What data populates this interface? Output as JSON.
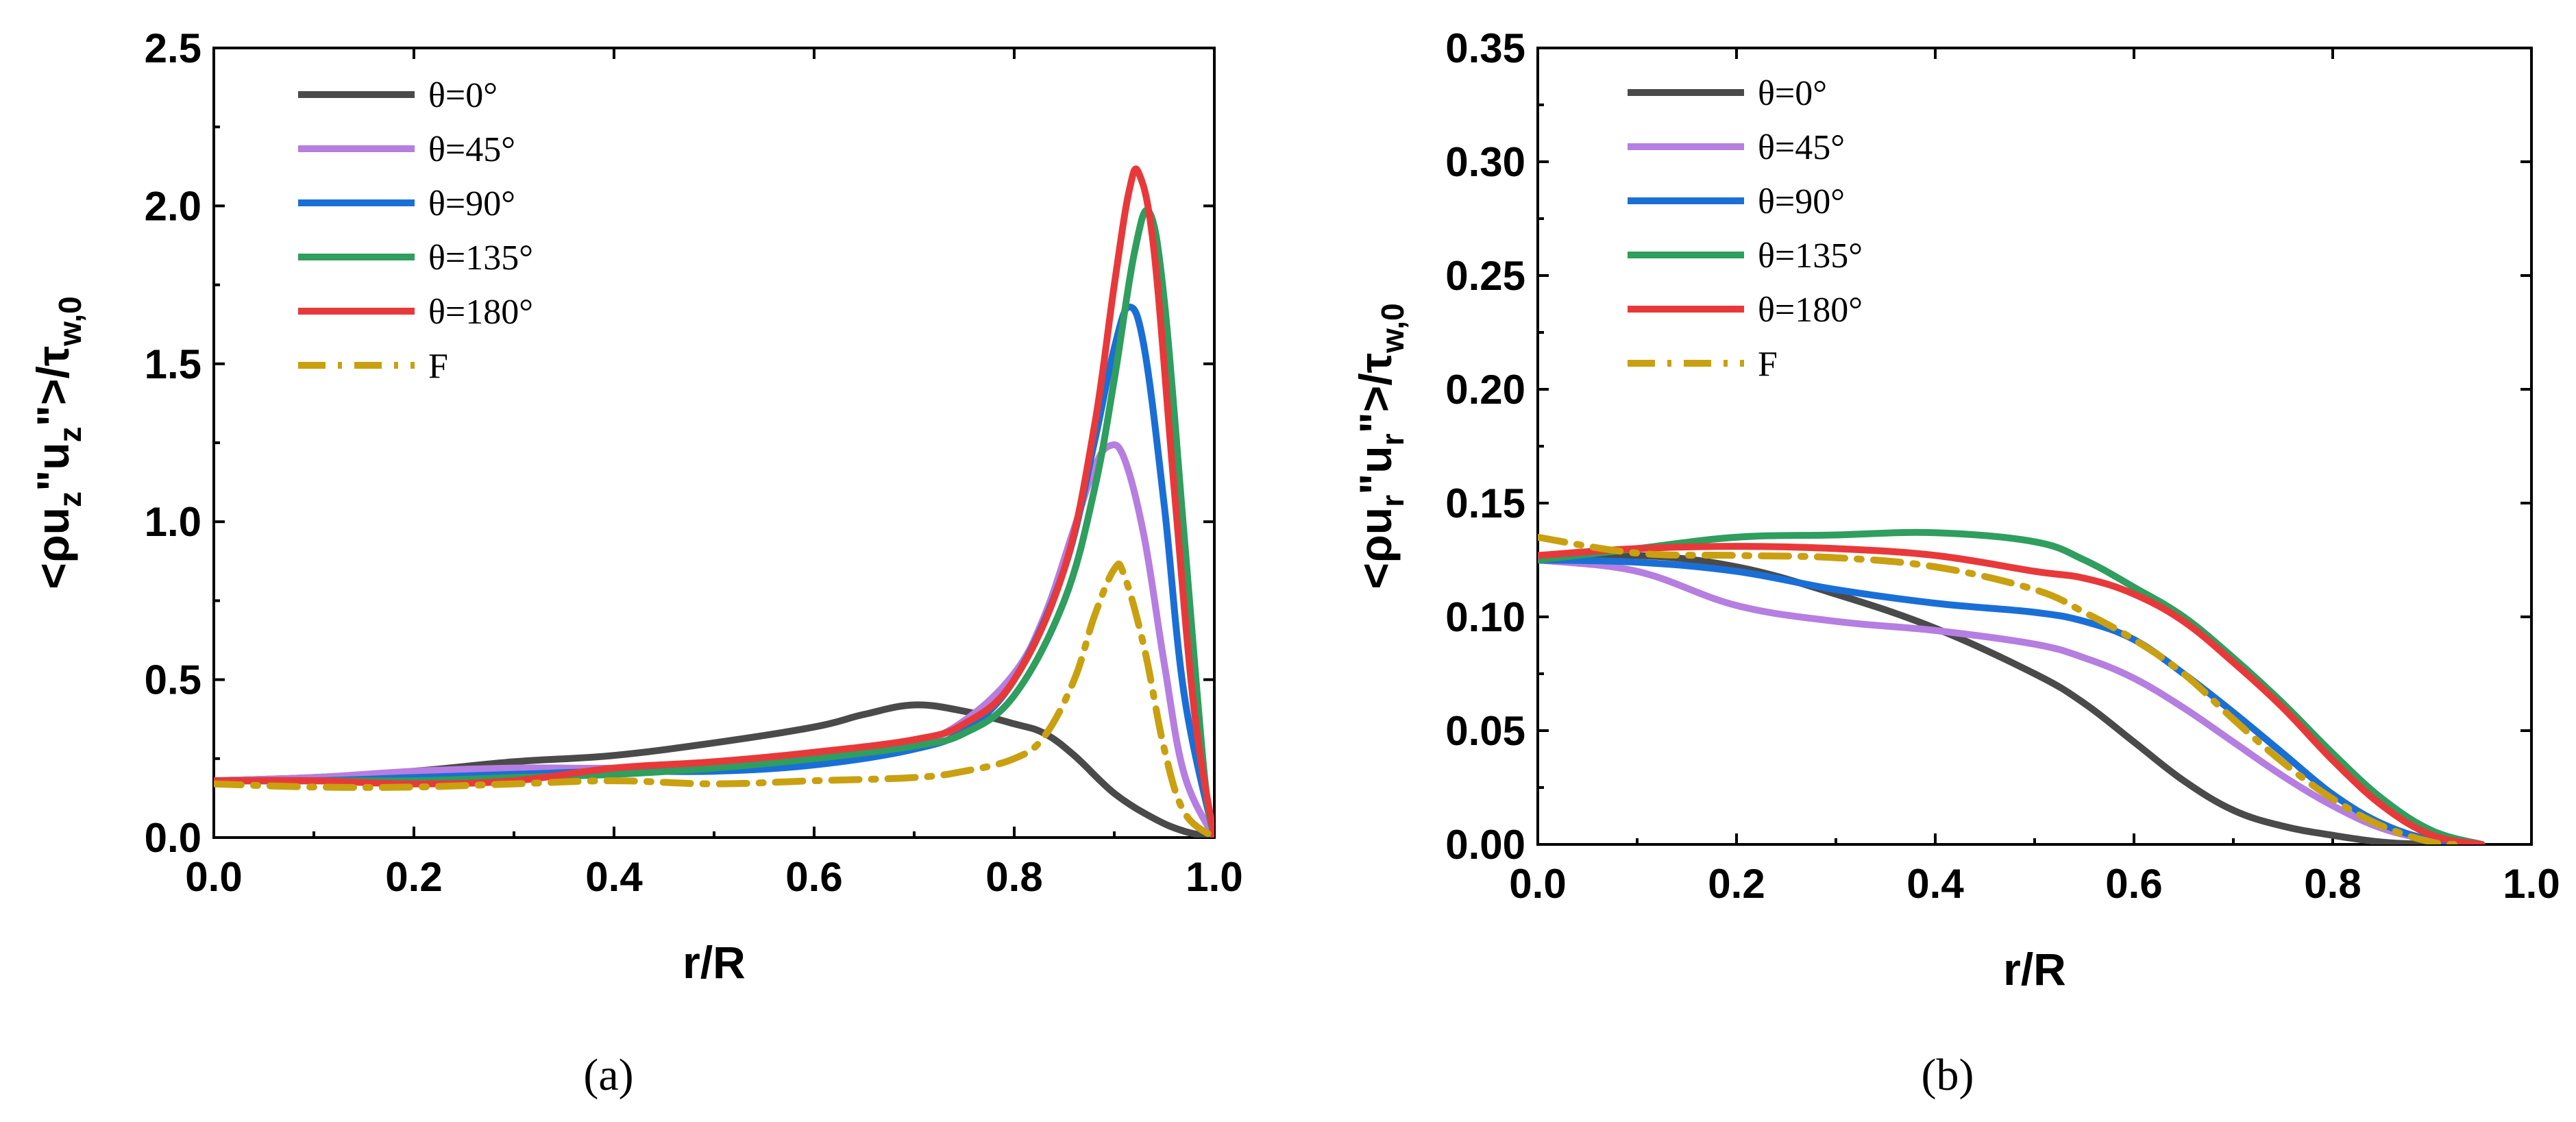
{
  "chart_data": [
    {
      "type": "line",
      "panel_label": "(a)",
      "xlabel": "r/R",
      "ylabel": {
        "prefix": "<ρu",
        "sub1": "z",
        "mid": "\"u",
        "sub2": "z",
        "mid2": "\">/τ",
        "sub3": "w,0"
      },
      "ylabel_text": "<ρu_z\"u_z\">/τ_w,0",
      "xlim": [
        0.0,
        1.0
      ],
      "ylim": [
        0.0,
        2.5
      ],
      "xticks": [
        "0.0",
        "0.2",
        "0.4",
        "0.6",
        "0.8",
        "1.0"
      ],
      "yticks": [
        "0.0",
        "0.5",
        "1.0",
        "1.5",
        "2.0",
        "2.5"
      ],
      "legend_position": "top-left",
      "series": [
        {
          "name": "θ=0°",
          "color": "#4a4a4a",
          "dash": "solid",
          "x": [
            0,
            0.1,
            0.2,
            0.3,
            0.4,
            0.5,
            0.6,
            0.65,
            0.7,
            0.75,
            0.8,
            0.83,
            0.86,
            0.9,
            0.94,
            0.97,
            1.0
          ],
          "y": [
            0.18,
            0.19,
            0.21,
            0.24,
            0.26,
            0.3,
            0.35,
            0.39,
            0.42,
            0.4,
            0.36,
            0.33,
            0.26,
            0.14,
            0.06,
            0.02,
            0.0
          ]
        },
        {
          "name": "θ=45°",
          "color": "#b57ee0",
          "dash": "solid",
          "x": [
            0,
            0.1,
            0.2,
            0.3,
            0.4,
            0.5,
            0.6,
            0.7,
            0.75,
            0.8,
            0.83,
            0.86,
            0.88,
            0.895,
            0.91,
            0.93,
            0.95,
            0.97,
            1.0
          ],
          "y": [
            0.18,
            0.19,
            0.21,
            0.22,
            0.22,
            0.23,
            0.25,
            0.3,
            0.37,
            0.52,
            0.7,
            0.98,
            1.17,
            1.24,
            1.2,
            0.95,
            0.55,
            0.2,
            0.0
          ]
        },
        {
          "name": "θ=90°",
          "color": "#1a6fd6",
          "dash": "solid",
          "x": [
            0,
            0.1,
            0.2,
            0.3,
            0.4,
            0.5,
            0.6,
            0.7,
            0.75,
            0.8,
            0.85,
            0.88,
            0.9,
            0.915,
            0.93,
            0.95,
            0.97,
            1.0
          ],
          "y": [
            0.18,
            0.18,
            0.19,
            0.2,
            0.21,
            0.21,
            0.23,
            0.28,
            0.34,
            0.5,
            0.85,
            1.25,
            1.55,
            1.68,
            1.55,
            1.05,
            0.45,
            0.0
          ]
        },
        {
          "name": "θ=135°",
          "color": "#2f9e5e",
          "dash": "solid",
          "x": [
            0,
            0.1,
            0.2,
            0.3,
            0.4,
            0.5,
            0.6,
            0.7,
            0.75,
            0.8,
            0.85,
            0.88,
            0.9,
            0.92,
            0.935,
            0.95,
            0.97,
            0.99,
            1.0
          ],
          "y": [
            0.18,
            0.18,
            0.18,
            0.19,
            0.2,
            0.22,
            0.25,
            0.29,
            0.33,
            0.45,
            0.75,
            1.1,
            1.45,
            1.85,
            1.98,
            1.7,
            0.95,
            0.2,
            0.0
          ]
        },
        {
          "name": "θ=180°",
          "color": "#e8393a",
          "dash": "solid",
          "x": [
            0,
            0.1,
            0.2,
            0.3,
            0.4,
            0.5,
            0.6,
            0.7,
            0.75,
            0.8,
            0.85,
            0.88,
            0.9,
            0.915,
            0.925,
            0.94,
            0.96,
            0.98,
            1.0
          ],
          "y": [
            0.18,
            0.18,
            0.17,
            0.18,
            0.22,
            0.24,
            0.27,
            0.31,
            0.36,
            0.5,
            0.85,
            1.3,
            1.75,
            2.05,
            2.1,
            1.85,
            1.1,
            0.4,
            0.0
          ]
        },
        {
          "name": "F",
          "color": "#c9a010",
          "dash": "dashdot",
          "x": [
            0,
            0.1,
            0.2,
            0.3,
            0.4,
            0.5,
            0.6,
            0.7,
            0.75,
            0.8,
            0.83,
            0.86,
            0.88,
            0.9,
            0.91,
            0.93,
            0.95,
            0.97,
            1.0
          ],
          "y": [
            0.17,
            0.16,
            0.16,
            0.17,
            0.18,
            0.17,
            0.18,
            0.19,
            0.21,
            0.25,
            0.32,
            0.5,
            0.7,
            0.85,
            0.83,
            0.6,
            0.28,
            0.08,
            0.0
          ]
        }
      ]
    },
    {
      "type": "line",
      "panel_label": "(b)",
      "xlabel": "r/R",
      "ylabel": {
        "prefix": "<ρu",
        "sub1": "r",
        "mid": "\"u",
        "sub2": "r",
        "mid2": "\">/τ",
        "sub3": "w,0"
      },
      "ylabel_text": "<ρu_r\"u_r\">/τ_w,0",
      "xlim": [
        0.0,
        1.0
      ],
      "ylim": [
        0.0,
        0.35
      ],
      "xticks": [
        "0.0",
        "0.2",
        "0.4",
        "0.6",
        "0.8",
        "1.0"
      ],
      "yticks": [
        "0.00",
        "0.05",
        "0.10",
        "0.15",
        "0.20",
        "0.25",
        "0.30",
        "0.35"
      ],
      "legend_position": "top-left",
      "series": [
        {
          "name": "θ=0°",
          "color": "#4a4a4a",
          "dash": "solid",
          "x": [
            0,
            0.1,
            0.2,
            0.3,
            0.4,
            0.5,
            0.55,
            0.6,
            0.65,
            0.7,
            0.75,
            0.8,
            0.85,
            0.9,
            0.95
          ],
          "y": [
            0.125,
            0.127,
            0.122,
            0.11,
            0.095,
            0.075,
            0.062,
            0.045,
            0.028,
            0.015,
            0.008,
            0.004,
            0.001,
            0.0,
            0.0
          ]
        },
        {
          "name": "θ=45°",
          "color": "#b57ee0",
          "dash": "solid",
          "x": [
            0,
            0.1,
            0.2,
            0.3,
            0.4,
            0.5,
            0.55,
            0.6,
            0.65,
            0.7,
            0.75,
            0.8,
            0.85,
            0.9,
            0.95
          ],
          "y": [
            0.125,
            0.12,
            0.105,
            0.098,
            0.094,
            0.088,
            0.082,
            0.073,
            0.06,
            0.045,
            0.03,
            0.017,
            0.007,
            0.002,
            0.0
          ]
        },
        {
          "name": "θ=90°",
          "color": "#1a6fd6",
          "dash": "solid",
          "x": [
            0,
            0.1,
            0.2,
            0.3,
            0.4,
            0.5,
            0.55,
            0.6,
            0.65,
            0.7,
            0.75,
            0.8,
            0.85,
            0.9,
            0.95
          ],
          "y": [
            0.125,
            0.124,
            0.12,
            0.112,
            0.106,
            0.102,
            0.098,
            0.09,
            0.075,
            0.058,
            0.04,
            0.022,
            0.009,
            0.002,
            0.0
          ]
        },
        {
          "name": "θ=135°",
          "color": "#2f9e5e",
          "dash": "solid",
          "x": [
            0,
            0.1,
            0.2,
            0.3,
            0.4,
            0.5,
            0.55,
            0.6,
            0.65,
            0.7,
            0.75,
            0.8,
            0.85,
            0.9,
            0.95
          ],
          "y": [
            0.125,
            0.13,
            0.135,
            0.136,
            0.137,
            0.133,
            0.125,
            0.113,
            0.1,
            0.082,
            0.062,
            0.04,
            0.02,
            0.006,
            0.0
          ]
        },
        {
          "name": "θ=180°",
          "color": "#e8393a",
          "dash": "solid",
          "x": [
            0,
            0.1,
            0.2,
            0.3,
            0.4,
            0.5,
            0.55,
            0.6,
            0.65,
            0.7,
            0.75,
            0.8,
            0.85,
            0.9,
            0.95
          ],
          "y": [
            0.127,
            0.13,
            0.131,
            0.13,
            0.127,
            0.12,
            0.117,
            0.11,
            0.098,
            0.08,
            0.06,
            0.037,
            0.017,
            0.004,
            0.0
          ]
        },
        {
          "name": "F",
          "color": "#c9a010",
          "dash": "dashdot",
          "x": [
            0,
            0.1,
            0.2,
            0.3,
            0.4,
            0.5,
            0.55,
            0.6,
            0.65,
            0.7,
            0.75,
            0.8,
            0.85,
            0.9,
            0.93
          ],
          "y": [
            0.135,
            0.128,
            0.127,
            0.126,
            0.122,
            0.112,
            0.102,
            0.09,
            0.075,
            0.055,
            0.036,
            0.02,
            0.008,
            0.001,
            0.0
          ]
        }
      ]
    }
  ]
}
